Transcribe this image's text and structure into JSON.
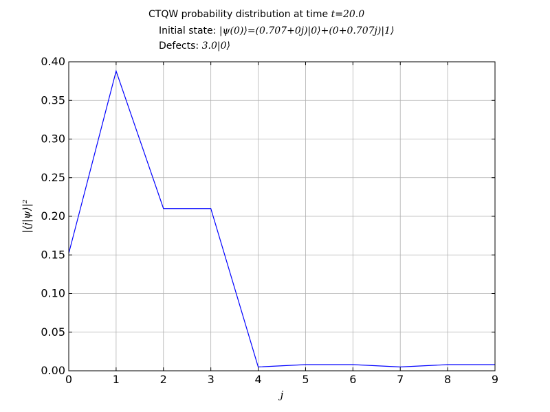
{
  "chart_data": {
    "type": "line",
    "title": {
      "line1_prefix": "CTQW probability distribution at time ",
      "line1_math": "t=20.0",
      "line2_prefix": "Initial state: ",
      "line2_math": "|ψ(0)⟩=(0.707+0j)|0⟩+(0+0.707j)|1⟩",
      "line3_prefix": "Defects: ",
      "line3_math": "3.0|0⟩"
    },
    "xlabel": "j",
    "ylabel": "|⟨j|ψ⟩|²",
    "xlim": [
      0,
      9
    ],
    "ylim": [
      0,
      0.4
    ],
    "x_ticks": [
      "0",
      "1",
      "2",
      "3",
      "4",
      "5",
      "6",
      "7",
      "8",
      "9"
    ],
    "y_ticks": [
      "0.00",
      "0.05",
      "0.10",
      "0.15",
      "0.20",
      "0.25",
      "0.30",
      "0.35",
      "0.40"
    ],
    "grid": true,
    "series": [
      {
        "color": "#0000ff",
        "x": [
          0,
          1,
          2,
          3,
          4,
          5,
          6,
          7,
          8,
          9
        ],
        "y": [
          0.152,
          0.388,
          0.21,
          0.21,
          0.005,
          0.008,
          0.008,
          0.005,
          0.008,
          0.008
        ]
      }
    ]
  }
}
